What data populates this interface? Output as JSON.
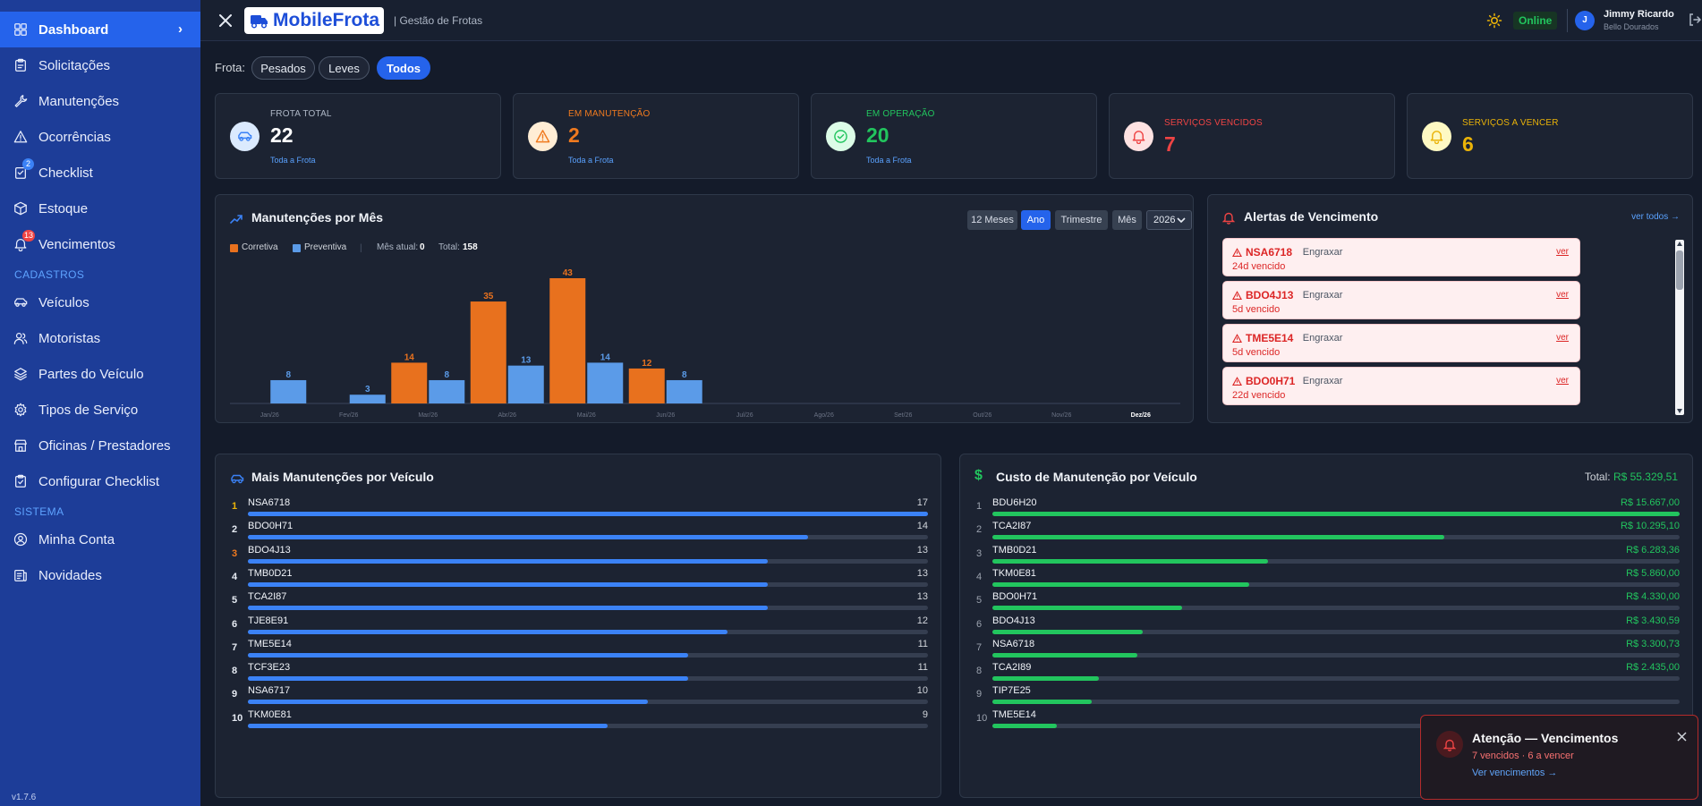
{
  "sidebar": {
    "items": [
      {
        "label": "Dashboard",
        "icon": "grid-icon"
      },
      {
        "label": "Solicitações",
        "icon": "clipboard-icon"
      },
      {
        "label": "Manutenções",
        "icon": "wrench-icon"
      },
      {
        "label": "Ocorrências",
        "icon": "warning-icon"
      },
      {
        "label": "Checklist",
        "icon": "checklist-icon",
        "badge": "2"
      },
      {
        "label": "Estoque",
        "icon": "box-icon"
      },
      {
        "label": "Vencimentos",
        "icon": "bell-icon",
        "badge": "13"
      }
    ],
    "sections": [
      {
        "title": "CADASTROS",
        "items": [
          {
            "label": "Veículos",
            "icon": "car-icon"
          },
          {
            "label": "Motoristas",
            "icon": "users-icon"
          },
          {
            "label": "Partes do Veículo",
            "icon": "layers-icon"
          },
          {
            "label": "Tipos de Serviço",
            "icon": "settings-icon"
          },
          {
            "label": "Oficinas / Prestadores",
            "icon": "store-icon"
          },
          {
            "label": "Configurar Checklist",
            "icon": "clipboard-check-icon"
          }
        ]
      },
      {
        "title": "SISTEMA",
        "items": [
          {
            "label": "Minha Conta",
            "icon": "user-circle-icon"
          },
          {
            "label": "Novidades",
            "icon": "news-icon"
          }
        ]
      }
    ],
    "version": "v1.7.6"
  },
  "header": {
    "logo_text": "MobileFrota",
    "subtitle": "| Gestão de Frotas",
    "status": "Online",
    "user_initial": "J",
    "user_name": "Jimmy Ricardo",
    "user_location": "Bello Dourados"
  },
  "filter": {
    "label": "Frota:",
    "options": [
      "Pesados",
      "Leves",
      "Todos"
    ],
    "selected": "Todos"
  },
  "stats": [
    {
      "label": "FROTA TOTAL",
      "value": "22",
      "link": "Toda a Frota",
      "color": "#ffffff",
      "label_color": "#aeb7c6",
      "icon": "car-icon"
    },
    {
      "label": "EM MANUTENÇÃO",
      "value": "2",
      "link": "Toda a Frota",
      "color": "#f07a1f",
      "label_color": "#f07a1f",
      "icon": "warning-icon"
    },
    {
      "label": "EM OPERAÇÃO",
      "value": "20",
      "link": "Toda a Frota",
      "color": "#22c55e",
      "label_color": "#22c55e",
      "icon": "check-circle-icon"
    },
    {
      "label": "SERVIÇOS VENCIDOS",
      "value": "7",
      "link": "",
      "color": "#ef4444",
      "label_color": "#ef4444",
      "icon": "bell-icon"
    },
    {
      "label": "SERVIÇOS A VENCER",
      "value": "6",
      "link": "",
      "color": "#eab308",
      "label_color": "#eab308",
      "icon": "bell-icon"
    }
  ],
  "maint_chart": {
    "title": "Manutenções por Mês",
    "buttons": [
      "12 Meses",
      "Ano",
      "Trimestre",
      "Mês"
    ],
    "active_button": "Ano",
    "year": "2026",
    "legend_corretiva": "Corretiva",
    "legend_preventiva": "Preventiva",
    "mes_atual_label": "Mês atual:",
    "mes_atual_value": "0",
    "total_label": "Total:",
    "total_value": "158"
  },
  "chart_data": {
    "type": "bar",
    "categories": [
      "Jan/26",
      "Fev/26",
      "Mar/26",
      "Abr/26",
      "Mai/26",
      "Jun/26",
      "Jul/26",
      "Ago/26",
      "Set/26",
      "Out/26",
      "Nov/26",
      "Dez/26"
    ],
    "highlight_category": "Dez/26",
    "series": [
      {
        "name": "Corretiva",
        "color": "#e8711e",
        "values": [
          0,
          0,
          14,
          35,
          43,
          12,
          0,
          0,
          0,
          0,
          0,
          0
        ]
      },
      {
        "name": "Preventiva",
        "color": "#5b9be8",
        "values": [
          8,
          3,
          8,
          13,
          14,
          8,
          0,
          0,
          0,
          0,
          0,
          0
        ]
      }
    ],
    "ylim": [
      0,
      43
    ],
    "grid": false,
    "legend": "top-left"
  },
  "alerts": {
    "title": "Alertas de Vencimento",
    "see_all": "ver todos →",
    "link_label": "ver",
    "items": [
      {
        "plate": "NSA6718",
        "service": "Engraxar",
        "due": "24d vencido"
      },
      {
        "plate": "BDO4J13",
        "service": "Engraxar",
        "due": "5d vencido"
      },
      {
        "plate": "TME5E14",
        "service": "Engraxar",
        "due": "5d vencido"
      },
      {
        "plate": "BDO0H71",
        "service": "Engraxar",
        "due": "22d vencido"
      }
    ]
  },
  "most_maint": {
    "title": "Mais Manutenções por Veículo",
    "max": 17,
    "rows": [
      {
        "rank": "1",
        "plate": "NSA6718",
        "value": 17,
        "rank_color": "#eab308"
      },
      {
        "rank": "2",
        "plate": "BDO0H71",
        "value": 14,
        "rank_color": "#e6ebf3"
      },
      {
        "rank": "3",
        "plate": "BDO4J13",
        "value": 13,
        "rank_color": "#f07a1f"
      },
      {
        "rank": "4",
        "plate": "TMB0D21",
        "value": 13,
        "rank_color": "#e6ebf3"
      },
      {
        "rank": "5",
        "plate": "TCA2I87",
        "value": 13,
        "rank_color": "#e6ebf3"
      },
      {
        "rank": "6",
        "plate": "TJE8E91",
        "value": 12,
        "rank_color": "#e6ebf3"
      },
      {
        "rank": "7",
        "plate": "TME5E14",
        "value": 11,
        "rank_color": "#e6ebf3"
      },
      {
        "rank": "8",
        "plate": "TCF3E23",
        "value": 11,
        "rank_color": "#e6ebf3"
      },
      {
        "rank": "9",
        "plate": "NSA6717",
        "value": 10,
        "rank_color": "#e6ebf3"
      },
      {
        "rank": "10",
        "plate": "TKM0E81",
        "value": 9,
        "rank_color": "#e6ebf3"
      }
    ]
  },
  "cost": {
    "title": "Custo de Manutenção por Veículo",
    "total_label": "Total:",
    "total_value": "R$ 55.329,51",
    "max": 15667.0,
    "rows": [
      {
        "rank": "1",
        "plate": "BDU6H20",
        "value": 15667.0,
        "label": "R$ 15.667,00"
      },
      {
        "rank": "2",
        "plate": "TCA2I87",
        "value": 10295.1,
        "label": "R$ 10.295,10"
      },
      {
        "rank": "3",
        "plate": "TMB0D21",
        "value": 6283.36,
        "label": "R$ 6.283,36"
      },
      {
        "rank": "4",
        "plate": "TKM0E81",
        "value": 5860.0,
        "label": "R$ 5.860,00"
      },
      {
        "rank": "5",
        "plate": "BDO0H71",
        "value": 4330.0,
        "label": "R$ 4.330,00"
      },
      {
        "rank": "6",
        "plate": "BDO4J13",
        "value": 3430.59,
        "label": "R$ 3.430,59"
      },
      {
        "rank": "7",
        "plate": "NSA6718",
        "value": 3300.73,
        "label": "R$ 3.300,73"
      },
      {
        "rank": "8",
        "plate": "TCA2I89",
        "value": 2435.0,
        "label": "R$ 2.435,00"
      },
      {
        "rank": "9",
        "plate": "TIP7E25",
        "value": 2260.0,
        "label": ""
      },
      {
        "rank": "10",
        "plate": "TME5E14",
        "value": 1460.0,
        "label": ""
      }
    ]
  },
  "toast": {
    "title": "Atenção — Vencimentos",
    "summary": "7 vencidos · 6 a vencer",
    "link": "Ver vencimentos →"
  },
  "colors": {
    "primary": "#2563eb",
    "sidebar": "#1d3d98",
    "bar_blue": "#3b82f6",
    "bar_green": "#22c55e"
  }
}
